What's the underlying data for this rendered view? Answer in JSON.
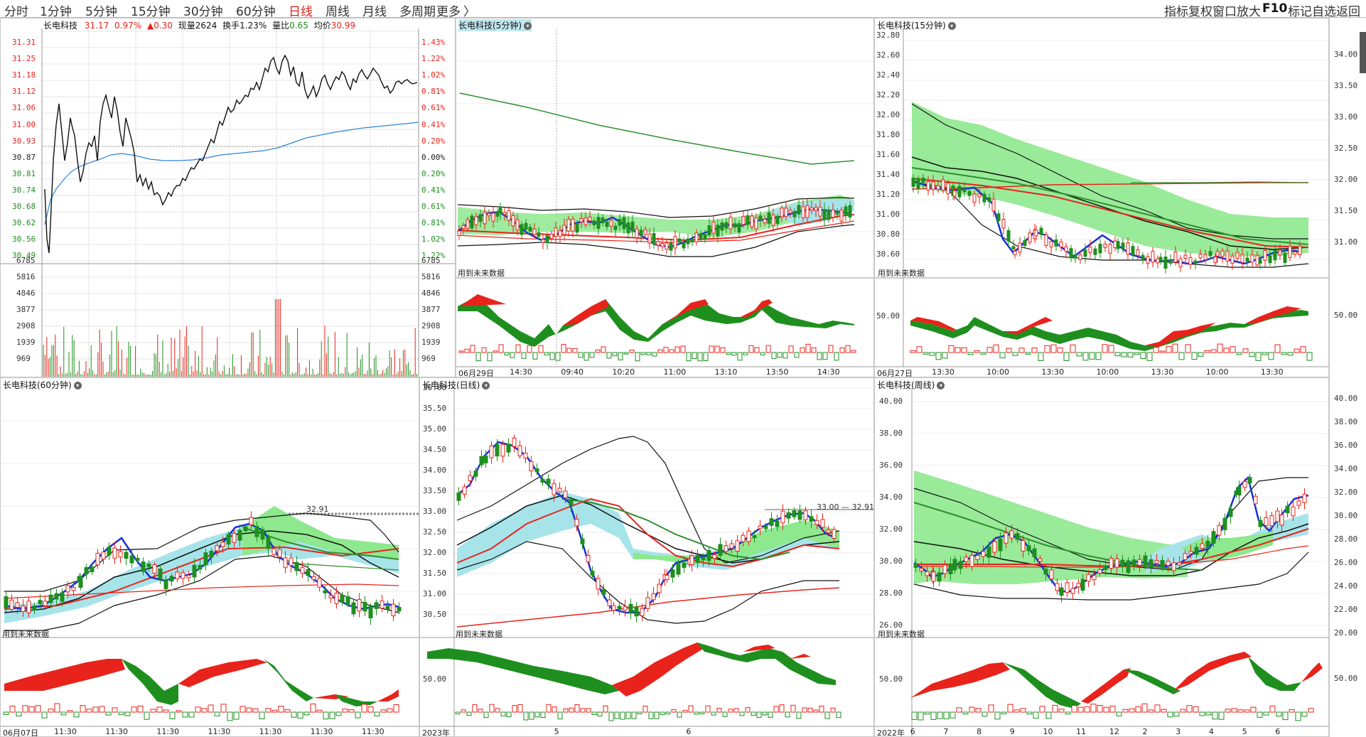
{
  "toolbar": {
    "tabs": [
      {
        "label": "分时",
        "active": false
      },
      {
        "label": "1分钟",
        "active": false
      },
      {
        "label": "5分钟",
        "active": false
      },
      {
        "label": "15分钟",
        "active": false
      },
      {
        "label": "30分钟",
        "active": false
      },
      {
        "label": "60分钟",
        "active": false
      },
      {
        "label": "日线",
        "active": true
      },
      {
        "label": "周线",
        "active": false
      },
      {
        "label": "月线",
        "active": false
      },
      {
        "label": "多周期",
        "active": false
      },
      {
        "label": "更多",
        "active": false
      }
    ],
    "more_arrow": "〉",
    "right_items": [
      "指标",
      "复权",
      "窗口",
      "放大",
      "F10",
      "标记",
      "自选",
      "返回"
    ]
  },
  "intraday": {
    "name": "长电科技",
    "price": "31.17",
    "pct": "0.97%",
    "change": "▲0.30",
    "vol_label": "现量",
    "vol_value": "2624",
    "turnover_label": "换手",
    "turnover_value": "1.23%",
    "ratio_label": "量比",
    "ratio_value": "0.65",
    "avg_label": "均价",
    "avg_value": "30.99",
    "price_ticks": [
      "31.31",
      "31.25",
      "31.18",
      "31.12",
      "31.06",
      "31.00",
      "30.93",
      "30.87",
      "30.81",
      "30.74",
      "30.68",
      "30.62",
      "30.56",
      "30.49"
    ],
    "pct_ticks": [
      "1.43%",
      "1.22%",
      "1.02%",
      "0.81%",
      "0.61%",
      "0.41%",
      "0.20%",
      "0.00%",
      "0.20%",
      "0.41%",
      "0.61%",
      "0.81%",
      "1.02%",
      "1.22%"
    ],
    "vol_ticks": [
      "6785",
      "5816",
      "4846",
      "3877",
      "2908",
      "1939",
      "969"
    ]
  },
  "panels": {
    "m5": {
      "title": "长电科技(5分钟)",
      "x_labels": [
        "06月29日",
        "14:30",
        "09:40",
        "10:20",
        "11:00",
        "13:10",
        "13:50",
        "14:30"
      ],
      "note": "用到未来数据"
    },
    "m15": {
      "title": "长电科技(15分钟)",
      "x_labels": [
        "06月27日",
        "13:30",
        "10:00",
        "13:30",
        "10:00",
        "13:30",
        "10:00",
        "13:30"
      ],
      "y_ticks": [
        "32.80",
        "32.60",
        "32.40",
        "32.20",
        "32.00",
        "31.80",
        "31.60",
        "31.40",
        "31.20",
        "31.00",
        "30.80",
        "30.60"
      ],
      "sub_tick": "50.00",
      "note": "用到未来数据"
    },
    "m15_right": {
      "y_ticks": [
        "34.00",
        "33.50",
        "33.00",
        "32.50",
        "32.00",
        "31.50",
        "31.00"
      ],
      "sub_tick": "50.00"
    },
    "m60": {
      "title": "长电科技(60分钟)",
      "x_labels": [
        "06月07日",
        "11:30",
        "11:30",
        "11:30",
        "11:30",
        "11:30",
        "11:30",
        "11:30"
      ],
      "price_marker": "32.91",
      "note": "用到未来数据"
    },
    "day": {
      "title": "长电科技(日线)",
      "x_labels": [
        "2023年",
        "5",
        "6"
      ],
      "y_ticks": [
        "36.00",
        "35.50",
        "35.00",
        "34.50",
        "34.00",
        "33.50",
        "33.00",
        "32.50",
        "32.00",
        "31.50",
        "31.00",
        "30.50"
      ],
      "sub_tick": "50.00",
      "price_marker": "33.00",
      "price_marker2": "32.91",
      "note": "用到未来数据"
    },
    "week": {
      "title": "长电科技(周线)",
      "x_labels": [
        "2022年",
        "6",
        "7",
        "8",
        "9",
        "10",
        "11",
        "12",
        "2",
        "3",
        "4",
        "5",
        "6"
      ],
      "y_ticks": [
        "40.00",
        "38.00",
        "36.00",
        "34.00",
        "32.00",
        "30.00",
        "28.00",
        "26.00"
      ],
      "sub_tick": "50.00",
      "note": "用到未来数据"
    },
    "week_right": {
      "y_ticks": [
        "40.00",
        "38.00",
        "36.00",
        "34.00",
        "32.00",
        "30.00",
        "28.00",
        "26.00",
        "24.00",
        "22.00",
        "20.00"
      ],
      "sub_tick": "50.00"
    }
  },
  "colors": {
    "up": "#e8231b",
    "down": "#1e8f1e",
    "ma_blue": "#1530d6",
    "band_green": "#7fe07f",
    "band_cyan": "#a6e4ea"
  }
}
